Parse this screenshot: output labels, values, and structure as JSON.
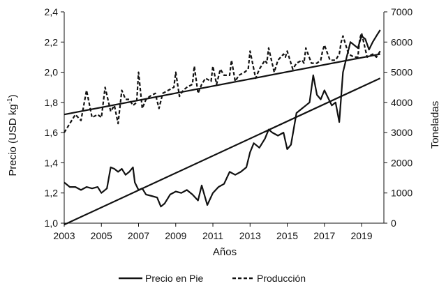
{
  "chart_data": {
    "type": "line",
    "title": "",
    "xlabel": "Años",
    "ylabel_left": "Precio (USD kg",
    "ylabel_left_superscript": "-1",
    "ylabel_left_close": ")",
    "ylabel_right": "Toneladas",
    "xlim": [
      2003,
      2020.2
    ],
    "ylim_left": [
      1.0,
      2.4
    ],
    "ylim_right": [
      0,
      7000
    ],
    "x_ticks": [
      "2003",
      "2005",
      "2007",
      "2009",
      "2011",
      "2013",
      "2015",
      "2017",
      "2019"
    ],
    "y_left_ticks": [
      "1,0",
      "1,2",
      "1,4",
      "1,6",
      "1,8",
      "2,0",
      "2,2",
      "2,4"
    ],
    "y_right_ticks": [
      "0",
      "1000",
      "2000",
      "3000",
      "4000",
      "5000",
      "6000",
      "7000"
    ],
    "grid": false,
    "legend_position": "bottom-center",
    "series": [
      {
        "name": "Precio en Pie",
        "axis": "left",
        "style": "solid",
        "color": "#111111",
        "x": [
          2003.0,
          2003.3,
          2003.6,
          2003.9,
          2004.2,
          2004.5,
          2004.8,
          2005.0,
          2005.3,
          2005.5,
          2005.7,
          2005.9,
          2006.1,
          2006.3,
          2006.5,
          2006.7,
          2006.8,
          2007.0,
          2007.2,
          2007.4,
          2007.7,
          2008.0,
          2008.2,
          2008.4,
          2008.7,
          2009.0,
          2009.3,
          2009.6,
          2009.9,
          2010.2,
          2010.4,
          2010.7,
          2011.0,
          2011.3,
          2011.6,
          2011.9,
          2012.2,
          2012.5,
          2012.8,
          2013.0,
          2013.2,
          2013.5,
          2013.8,
          2014.0,
          2014.2,
          2014.5,
          2014.8,
          2015.0,
          2015.2,
          2015.5,
          2015.8,
          2016.0,
          2016.2,
          2016.4,
          2016.6,
          2016.8,
          2017.0,
          2017.2,
          2017.4,
          2017.6,
          2017.8,
          2018.0,
          2018.2,
          2018.4,
          2018.6,
          2018.8,
          2019.0,
          2019.2,
          2019.4,
          2019.6,
          2019.8,
          2020.0
        ],
        "values": [
          1.27,
          1.24,
          1.24,
          1.22,
          1.24,
          1.23,
          1.24,
          1.2,
          1.23,
          1.37,
          1.36,
          1.34,
          1.36,
          1.32,
          1.34,
          1.37,
          1.27,
          1.22,
          1.23,
          1.19,
          1.18,
          1.17,
          1.11,
          1.13,
          1.19,
          1.21,
          1.2,
          1.22,
          1.19,
          1.15,
          1.25,
          1.12,
          1.2,
          1.24,
          1.26,
          1.34,
          1.32,
          1.34,
          1.37,
          1.47,
          1.53,
          1.5,
          1.56,
          1.62,
          1.6,
          1.58,
          1.6,
          1.49,
          1.52,
          1.73,
          1.76,
          1.78,
          1.8,
          1.98,
          1.85,
          1.82,
          1.88,
          1.83,
          1.78,
          1.8,
          1.67,
          2.0,
          2.1,
          2.2,
          2.18,
          2.16,
          2.24,
          2.22,
          2.15,
          2.2,
          2.24,
          2.28
        ]
      },
      {
        "name": "Producción",
        "axis": "right",
        "style": "dashed",
        "color": "#111111",
        "x": [
          2003.0,
          2003.3,
          2003.6,
          2003.9,
          2004.2,
          2004.5,
          2004.8,
          2005.0,
          2005.2,
          2005.5,
          2005.7,
          2005.9,
          2006.1,
          2006.3,
          2006.5,
          2006.7,
          2006.9,
          2007.0,
          2007.2,
          2007.4,
          2007.6,
          2007.9,
          2008.1,
          2008.3,
          2008.6,
          2008.9,
          2009.0,
          2009.2,
          2009.4,
          2009.6,
          2009.9,
          2010.0,
          2010.2,
          2010.4,
          2010.6,
          2010.9,
          2011.0,
          2011.2,
          2011.4,
          2011.6,
          2011.9,
          2012.0,
          2012.2,
          2012.4,
          2012.7,
          2012.9,
          2013.0,
          2013.3,
          2013.5,
          2013.8,
          2013.9,
          2014.0,
          2014.3,
          2014.5,
          2014.8,
          2014.9,
          2015.0,
          2015.3,
          2015.5,
          2015.8,
          2015.9,
          2016.0,
          2016.3,
          2016.6,
          2016.8,
          2016.9,
          2017.0,
          2017.3,
          2017.6,
          2017.8,
          2017.9,
          2018.0,
          2018.3,
          2018.6,
          2018.8,
          2018.9,
          2019.0,
          2019.3,
          2019.6,
          2019.8,
          2020.0
        ],
        "values": [
          3000,
          3300,
          3600,
          3400,
          4400,
          3500,
          3600,
          3500,
          4500,
          3700,
          3900,
          3300,
          4400,
          4100,
          4100,
          3900,
          4000,
          5000,
          3800,
          4100,
          4200,
          4300,
          3800,
          4300,
          4400,
          4500,
          5000,
          4200,
          4400,
          4500,
          4600,
          5200,
          4300,
          4600,
          4800,
          4700,
          5200,
          4600,
          5100,
          4900,
          4900,
          5400,
          4700,
          4900,
          5000,
          5100,
          5700,
          4800,
          5100,
          5400,
          5300,
          5800,
          5000,
          5400,
          5600,
          5500,
          5700,
          5100,
          5300,
          5400,
          5300,
          5800,
          5300,
          5300,
          5400,
          5700,
          5900,
          5400,
          5400,
          5600,
          6000,
          6200,
          5600,
          5500,
          5500,
          6100,
          6300,
          5500,
          5600,
          5500,
          5700
        ]
      }
    ],
    "trendlines": [
      {
        "axis": "left",
        "x": [
          2003,
          2020
        ],
        "values": [
          0.99,
          1.96
        ]
      },
      {
        "axis": "right",
        "x": [
          2003,
          2020
        ],
        "values": [
          3600,
          5600
        ]
      }
    ]
  }
}
